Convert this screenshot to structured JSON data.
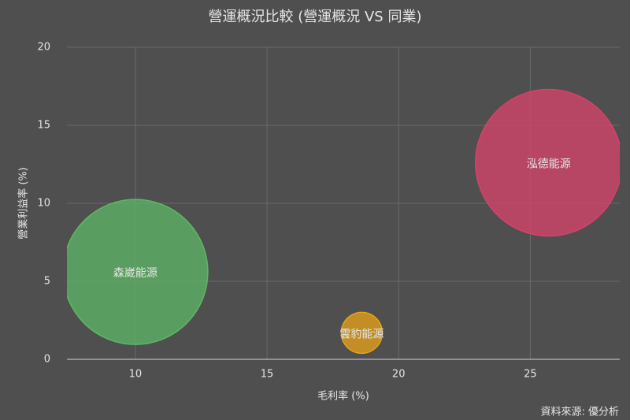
{
  "chart_data": {
    "type": "bubble",
    "title": "營運概況比較 (營運概況 VS 同業)",
    "x_label": "毛利率 (%)",
    "y_label": "營業利益率 (%)",
    "source": "資料來源: 優分析",
    "xlim": [
      7.4,
      28.4
    ],
    "xticks": [
      10,
      15,
      20,
      25
    ],
    "ylim": [
      0,
      20
    ],
    "yticks": [
      0,
      5,
      10,
      15,
      20
    ],
    "grid": true,
    "series": [
      {
        "name": "森崴能源",
        "color": "#5cb865",
        "x": [
          10.0
        ],
        "values": [
          5.6
        ],
        "size": [
          92
        ]
      },
      {
        "name": "雲豹能源",
        "color": "#e8a317",
        "x": [
          18.6
        ],
        "values": [
          1.7
        ],
        "size": [
          26
        ]
      },
      {
        "name": "泓德能源",
        "color": "#d9416b",
        "x": [
          25.7
        ],
        "values": [
          12.6
        ],
        "size": [
          93
        ]
      }
    ]
  }
}
